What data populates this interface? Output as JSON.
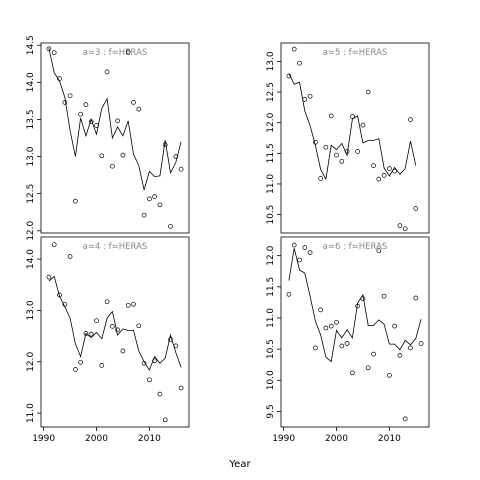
{
  "chart_data": {
    "type": "scatter",
    "layout": "2x2 lattice",
    "xlabel": "Year",
    "x_ticks": [
      1990,
      2000,
      2010
    ],
    "xlim": [
      1989.5,
      2017.5
    ],
    "panels": [
      {
        "title": "a=3 : f=HERAS",
        "ylim": [
          11.97,
          14.53
        ],
        "y_ticks": [
          12.0,
          12.5,
          13.0,
          13.5,
          14.0,
          14.5
        ],
        "y_tick_labels": [
          "12.0",
          "12.5",
          "13.0",
          "13.5",
          "14.0",
          "14.5"
        ],
        "points": [
          [
            1991,
            14.45
          ],
          [
            1992,
            14.4
          ],
          [
            1993,
            14.05
          ],
          [
            1994,
            13.73
          ],
          [
            1995,
            13.82
          ],
          [
            1996,
            12.4
          ],
          [
            1997,
            13.57
          ],
          [
            1998,
            13.7
          ],
          [
            1999,
            13.47
          ],
          [
            2000,
            13.42
          ],
          [
            2001,
            13.01
          ],
          [
            2002,
            14.14
          ],
          [
            2003,
            12.87
          ],
          [
            2004,
            13.48
          ],
          [
            2005,
            13.02
          ],
          [
            2006,
            14.41
          ],
          [
            2007,
            13.73
          ],
          [
            2008,
            13.64
          ],
          [
            2009,
            12.21
          ],
          [
            2010,
            12.43
          ],
          [
            2011,
            12.46
          ],
          [
            2012,
            12.35
          ],
          [
            2013,
            13.16
          ],
          [
            2014,
            12.06
          ],
          [
            2015,
            13.0
          ],
          [
            2016,
            12.83
          ]
        ],
        "line": [
          [
            1991,
            14.46
          ],
          [
            1992,
            14.13
          ],
          [
            1993,
            14.02
          ],
          [
            1994,
            13.8
          ],
          [
            1995,
            13.35
          ],
          [
            1996,
            13.0
          ],
          [
            1997,
            13.52
          ],
          [
            1998,
            13.28
          ],
          [
            1999,
            13.5
          ],
          [
            2000,
            13.3
          ],
          [
            2001,
            13.65
          ],
          [
            2002,
            13.78
          ],
          [
            2003,
            13.25
          ],
          [
            2004,
            13.4
          ],
          [
            2005,
            13.28
          ],
          [
            2006,
            13.48
          ],
          [
            2007,
            13.03
          ],
          [
            2008,
            12.88
          ],
          [
            2009,
            12.55
          ],
          [
            2010,
            12.8
          ],
          [
            2011,
            12.73
          ],
          [
            2012,
            12.74
          ],
          [
            2013,
            13.22
          ],
          [
            2014,
            12.78
          ],
          [
            2015,
            12.92
          ],
          [
            2016,
            13.2
          ]
        ]
      },
      {
        "title": "a=5 : f=HERAS",
        "ylim": [
          10.2,
          13.3
        ],
        "y_ticks": [
          10.5,
          11.0,
          11.5,
          12.0,
          12.5,
          13.0
        ],
        "y_tick_labels": [
          "10.5",
          "11.0",
          "11.5",
          "12.0",
          "12.5",
          "13.0"
        ],
        "points": [
          [
            1991,
            12.76
          ],
          [
            1992,
            13.2
          ],
          [
            1993,
            12.97
          ],
          [
            1994,
            12.38
          ],
          [
            1995,
            12.43
          ],
          [
            1996,
            11.68
          ],
          [
            1997,
            11.09
          ],
          [
            1998,
            11.6
          ],
          [
            1999,
            12.11
          ],
          [
            2000,
            11.47
          ],
          [
            2001,
            11.37
          ],
          [
            2002,
            11.53
          ],
          [
            2003,
            12.1
          ],
          [
            2004,
            11.53
          ],
          [
            2005,
            11.96
          ],
          [
            2006,
            12.5
          ],
          [
            2007,
            11.3
          ],
          [
            2008,
            11.08
          ],
          [
            2009,
            11.14
          ],
          [
            2010,
            11.25
          ],
          [
            2011,
            11.21
          ],
          [
            2012,
            10.32
          ],
          [
            2013,
            10.27
          ],
          [
            2014,
            12.05
          ],
          [
            2015,
            10.6
          ]
        ],
        "line": [
          [
            1991,
            12.8
          ],
          [
            1992,
            12.63
          ],
          [
            1993,
            12.66
          ],
          [
            1994,
            12.19
          ],
          [
            1995,
            11.95
          ],
          [
            1996,
            11.63
          ],
          [
            1997,
            11.24
          ],
          [
            1998,
            11.08
          ],
          [
            1999,
            11.63
          ],
          [
            2000,
            11.56
          ],
          [
            2001,
            11.66
          ],
          [
            2002,
            11.47
          ],
          [
            2003,
            12.06
          ],
          [
            2004,
            12.11
          ],
          [
            2005,
            11.67
          ],
          [
            2006,
            11.71
          ],
          [
            2007,
            11.71
          ],
          [
            2008,
            11.74
          ],
          [
            2009,
            11.26
          ],
          [
            2010,
            11.13
          ],
          [
            2011,
            11.27
          ],
          [
            2012,
            11.16
          ],
          [
            2013,
            11.25
          ],
          [
            2014,
            11.7
          ],
          [
            2015,
            11.3
          ]
        ]
      },
      {
        "title": "a=4 : f=HERAS",
        "ylim": [
          10.73,
          14.43
        ],
        "y_ticks": [
          11.0,
          12.0,
          13.0,
          14.0
        ],
        "y_tick_labels": [
          "11.0",
          "12.0",
          "13.0",
          "14.0"
        ],
        "points": [
          [
            1991,
            13.65
          ],
          [
            1992,
            14.28
          ],
          [
            1993,
            13.3
          ],
          [
            1994,
            13.12
          ],
          [
            1995,
            14.05
          ],
          [
            1996,
            11.85
          ],
          [
            1997,
            11.99
          ],
          [
            1998,
            12.55
          ],
          [
            1999,
            12.54
          ],
          [
            2000,
            12.8
          ],
          [
            2001,
            11.93
          ],
          [
            2002,
            13.17
          ],
          [
            2003,
            12.69
          ],
          [
            2004,
            12.62
          ],
          [
            2005,
            12.21
          ],
          [
            2006,
            13.1
          ],
          [
            2007,
            13.12
          ],
          [
            2008,
            12.7
          ],
          [
            2009,
            11.97
          ],
          [
            2010,
            11.65
          ],
          [
            2011,
            12.02
          ],
          [
            2012,
            11.37
          ],
          [
            2013,
            10.87
          ],
          [
            2014,
            12.43
          ],
          [
            2015,
            12.31
          ],
          [
            2016,
            11.49
          ]
        ],
        "line": [
          [
            1991,
            13.57
          ],
          [
            1992,
            13.66
          ],
          [
            1993,
            13.28
          ],
          [
            1994,
            13.07
          ],
          [
            1995,
            12.85
          ],
          [
            1996,
            12.35
          ],
          [
            1997,
            12.1
          ],
          [
            1998,
            12.55
          ],
          [
            1999,
            12.47
          ],
          [
            2000,
            12.57
          ],
          [
            2001,
            12.45
          ],
          [
            2002,
            12.85
          ],
          [
            2003,
            12.98
          ],
          [
            2004,
            12.52
          ],
          [
            2005,
            12.64
          ],
          [
            2006,
            12.61
          ],
          [
            2007,
            12.61
          ],
          [
            2008,
            12.21
          ],
          [
            2009,
            12.0
          ],
          [
            2010,
            11.84
          ],
          [
            2011,
            12.1
          ],
          [
            2012,
            11.97
          ],
          [
            2013,
            12.07
          ],
          [
            2014,
            12.52
          ],
          [
            2015,
            12.18
          ],
          [
            2016,
            11.89
          ]
        ]
      },
      {
        "title": "a=6 : f=HERAS",
        "ylim": [
          9.25,
          12.3
        ],
        "y_ticks": [
          9.5,
          10.0,
          10.5,
          11.0,
          11.5,
          12.0
        ],
        "y_tick_labels": [
          "9.5",
          "10.0",
          "10.5",
          "11.0",
          "11.5",
          "12.0"
        ],
        "points": [
          [
            1991,
            11.38
          ],
          [
            1992,
            12.17
          ],
          [
            1993,
            11.93
          ],
          [
            1994,
            12.13
          ],
          [
            1995,
            12.05
          ],
          [
            1996,
            10.52
          ],
          [
            1997,
            11.13
          ],
          [
            1998,
            10.84
          ],
          [
            1999,
            10.87
          ],
          [
            2000,
            10.93
          ],
          [
            2001,
            10.55
          ],
          [
            2002,
            10.59
          ],
          [
            2003,
            10.12
          ],
          [
            2004,
            11.19
          ],
          [
            2005,
            11.31
          ],
          [
            2006,
            10.2
          ],
          [
            2007,
            10.42
          ],
          [
            2008,
            12.08
          ],
          [
            2009,
            11.35
          ],
          [
            2010,
            10.08
          ],
          [
            2011,
            10.87
          ],
          [
            2012,
            10.4
          ],
          [
            2013,
            9.38
          ],
          [
            2014,
            10.52
          ],
          [
            2015,
            11.32
          ],
          [
            2016,
            10.59
          ]
        ],
        "line": [
          [
            1991,
            11.6
          ],
          [
            1992,
            12.12
          ],
          [
            1993,
            11.77
          ],
          [
            1994,
            11.72
          ],
          [
            1995,
            11.35
          ],
          [
            1996,
            10.95
          ],
          [
            1997,
            10.73
          ],
          [
            1998,
            10.37
          ],
          [
            1999,
            10.3
          ],
          [
            2000,
            10.8
          ],
          [
            2001,
            10.68
          ],
          [
            2002,
            10.81
          ],
          [
            2003,
            10.68
          ],
          [
            2004,
            11.24
          ],
          [
            2005,
            11.37
          ],
          [
            2006,
            10.88
          ],
          [
            2007,
            10.88
          ],
          [
            2008,
            10.97
          ],
          [
            2009,
            10.9
          ],
          [
            2010,
            10.58
          ],
          [
            2011,
            10.58
          ],
          [
            2012,
            10.49
          ],
          [
            2013,
            10.64
          ],
          [
            2014,
            10.57
          ],
          [
            2015,
            10.67
          ],
          [
            2016,
            10.98
          ]
        ]
      }
    ]
  }
}
